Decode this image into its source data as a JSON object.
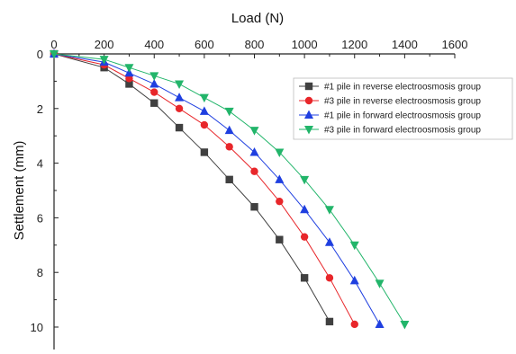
{
  "chart_data": {
    "type": "line",
    "title": "",
    "xlabel": "Load (N)",
    "ylabel": "Settlement (mm)",
    "xlim": [
      0,
      1600
    ],
    "ylim": [
      0,
      10
    ],
    "y_inverted": true,
    "x_axis_position": "top",
    "x_ticks": [
      "0",
      "200",
      "400",
      "600",
      "800",
      "1000",
      "1200",
      "1400",
      "1600"
    ],
    "y_ticks": [
      "0",
      "2",
      "4",
      "6",
      "8",
      "10"
    ],
    "grid": false,
    "legend_position": "top-right",
    "series": [
      {
        "name": "#1 pile in reverse electroosmosis group",
        "color": "#404040",
        "marker": "square",
        "x": [
          0,
          200,
          300,
          400,
          500,
          600,
          700,
          800,
          900,
          1000,
          1100
        ],
        "y": [
          0,
          0.5,
          1.1,
          1.8,
          2.7,
          3.6,
          4.6,
          5.6,
          6.8,
          8.2,
          9.8
        ]
      },
      {
        "name": "#3 pile in reverse electroosmosis group",
        "color": "#e8262a",
        "marker": "circle",
        "x": [
          0,
          200,
          300,
          400,
          500,
          600,
          700,
          800,
          900,
          1000,
          1100,
          1200
        ],
        "y": [
          0,
          0.4,
          0.9,
          1.4,
          2.0,
          2.6,
          3.4,
          4.3,
          5.4,
          6.7,
          8.2,
          9.9
        ]
      },
      {
        "name": "#1 pile in forward electroosmosis group",
        "color": "#1f3fe0",
        "marker": "triangle-up",
        "x": [
          0,
          200,
          300,
          400,
          500,
          600,
          700,
          800,
          900,
          1000,
          1100,
          1200,
          1300
        ],
        "y": [
          0,
          0.3,
          0.7,
          1.1,
          1.6,
          2.1,
          2.8,
          3.6,
          4.6,
          5.7,
          6.9,
          8.3,
          9.9
        ]
      },
      {
        "name": "#3 pile in forward electroosmosis group",
        "color": "#22b56a",
        "marker": "triangle-down",
        "x": [
          0,
          200,
          300,
          400,
          500,
          600,
          700,
          800,
          900,
          1000,
          1100,
          1200,
          1300,
          1400
        ],
        "y": [
          0,
          0.2,
          0.5,
          0.8,
          1.1,
          1.6,
          2.1,
          2.8,
          3.6,
          4.6,
          5.7,
          7.0,
          8.4,
          9.9
        ]
      }
    ]
  }
}
